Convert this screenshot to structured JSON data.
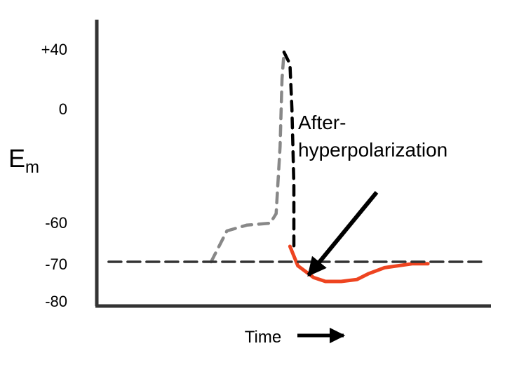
{
  "chart_data": {
    "type": "line",
    "ylabel": {
      "main": "E",
      "sub": "m"
    },
    "xlabel": "Time",
    "ylim": [
      -80,
      40
    ],
    "y_ticks": [
      {
        "value": 40,
        "label": "+40"
      },
      {
        "value": 0,
        "label": "0"
      },
      {
        "value": -60,
        "label": "-60"
      },
      {
        "value": -70,
        "label": "-70"
      },
      {
        "value": -80,
        "label": "-80"
      }
    ],
    "series": [
      {
        "style": "dashed",
        "color": "#888888",
        "points": [
          [
            0.29,
            -70
          ],
          [
            0.33,
            -62
          ],
          [
            0.38,
            -60.5
          ],
          [
            0.44,
            -60
          ],
          [
            0.455,
            -55
          ],
          [
            0.465,
            -20
          ],
          [
            0.47,
            20
          ],
          [
            0.475,
            38
          ]
        ]
      },
      {
        "style": "dashed",
        "color": "#000000",
        "points": [
          [
            0.475,
            38
          ],
          [
            0.49,
            30
          ],
          [
            0.495,
            0
          ],
          [
            0.5,
            -40
          ],
          [
            0.5,
            -66
          ]
        ]
      },
      {
        "style": "solid",
        "color": "#ee4420",
        "points": [
          [
            0.49,
            -66
          ],
          [
            0.51,
            -71
          ],
          [
            0.55,
            -74
          ],
          [
            0.58,
            -75
          ],
          [
            0.62,
            -75
          ],
          [
            0.66,
            -74.5
          ],
          [
            0.69,
            -73
          ],
          [
            0.73,
            -71.5
          ],
          [
            0.8,
            -70.5
          ],
          [
            0.84,
            -70.5
          ]
        ]
      },
      {
        "style": "dashed",
        "color": "#333333",
        "baseline": true,
        "points": [
          [
            0.03,
            -70
          ],
          [
            0.98,
            -70
          ]
        ]
      }
    ],
    "annotation": {
      "lines": [
        "After-",
        "hyperpolarization"
      ]
    }
  }
}
